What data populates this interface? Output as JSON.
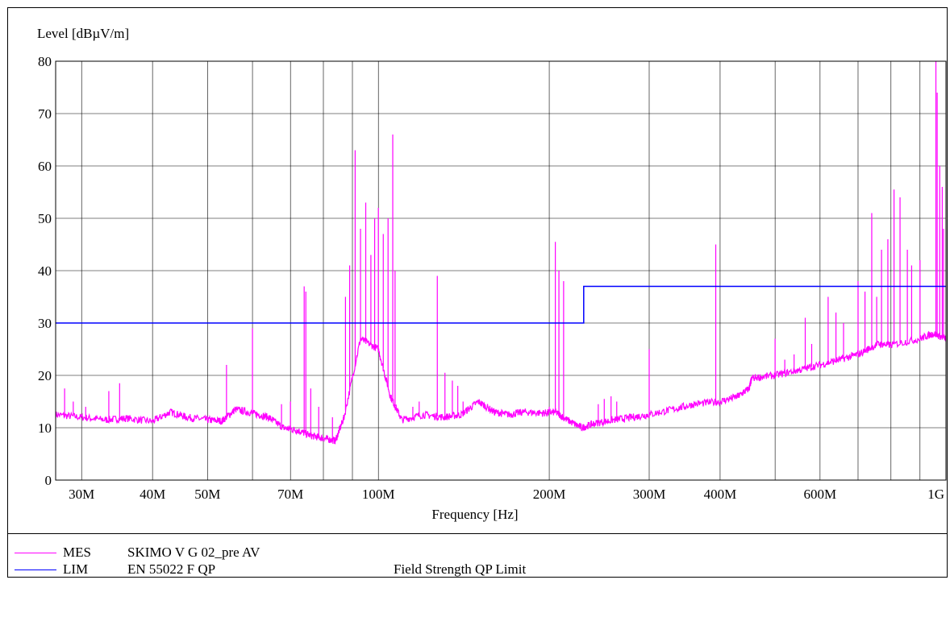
{
  "chart_data": {
    "type": "line",
    "ylabel": "Level [dBµV/m]",
    "xlabel": "Frequency [Hz]",
    "x_scale": "log",
    "xlim": [
      27000000,
      1000000000
    ],
    "ylim": [
      0,
      80
    ],
    "y_ticks": [
      0,
      10,
      20,
      30,
      40,
      50,
      60,
      70,
      80
    ],
    "x_ticks": [
      {
        "value": 30000000,
        "label": "30M"
      },
      {
        "value": 40000000,
        "label": "40M"
      },
      {
        "value": 50000000,
        "label": "50M"
      },
      {
        "value": 70000000,
        "label": "70M"
      },
      {
        "value": 100000000,
        "label": "100M"
      },
      {
        "value": 200000000,
        "label": "200M"
      },
      {
        "value": 300000000,
        "label": "300M"
      },
      {
        "value": 400000000,
        "label": "400M"
      },
      {
        "value": 600000000,
        "label": "600M"
      },
      {
        "value": 1000000000,
        "label": "1G"
      }
    ],
    "grid_x": [
      30000000,
      40000000,
      50000000,
      60000000,
      70000000,
      80000000,
      90000000,
      100000000,
      200000000,
      300000000,
      400000000,
      500000000,
      600000000,
      700000000,
      800000000,
      900000000
    ],
    "grid": true,
    "legend_placement": "bottom",
    "series": [
      {
        "name": "MES",
        "color": "#ff00ff",
        "baseline": [
          [
            27000000,
            12.5
          ],
          [
            30000000,
            12.0
          ],
          [
            33000000,
            11.5
          ],
          [
            36000000,
            11.8
          ],
          [
            40000000,
            11.2
          ],
          [
            43000000,
            13.0
          ],
          [
            46000000,
            12.0
          ],
          [
            50000000,
            11.5
          ],
          [
            53000000,
            11.3
          ],
          [
            56000000,
            13.5
          ],
          [
            60000000,
            12.8
          ],
          [
            64000000,
            12.0
          ],
          [
            68000000,
            10.0
          ],
          [
            72000000,
            9.5
          ],
          [
            76000000,
            8.5
          ],
          [
            80000000,
            8.0
          ],
          [
            84000000,
            7.5
          ],
          [
            87000000,
            12.0
          ],
          [
            93000000,
            27.0
          ],
          [
            100000000,
            25.0
          ],
          [
            105000000,
            16.0
          ],
          [
            110000000,
            11.5
          ],
          [
            120000000,
            12.5
          ],
          [
            130000000,
            12.0
          ],
          [
            140000000,
            12.5
          ],
          [
            150000000,
            15.0
          ],
          [
            160000000,
            13.0
          ],
          [
            170000000,
            12.5
          ],
          [
            180000000,
            13.0
          ],
          [
            195000000,
            12.8
          ],
          [
            205000000,
            13.0
          ],
          [
            215000000,
            11.5
          ],
          [
            228000000,
            10.0
          ],
          [
            240000000,
            10.8
          ],
          [
            260000000,
            11.5
          ],
          [
            280000000,
            12.0
          ],
          [
            300000000,
            12.5
          ],
          [
            330000000,
            13.5
          ],
          [
            360000000,
            14.5
          ],
          [
            400000000,
            15.0
          ],
          [
            430000000,
            16.0
          ],
          [
            450000000,
            17.5
          ],
          [
            455000000,
            19.5
          ],
          [
            500000000,
            20.0
          ],
          [
            550000000,
            21.0
          ],
          [
            600000000,
            22.0
          ],
          [
            650000000,
            23.0
          ],
          [
            700000000,
            24.0
          ],
          [
            760000000,
            26.0
          ],
          [
            800000000,
            25.8
          ],
          [
            900000000,
            27.0
          ],
          [
            950000000,
            28.0
          ],
          [
            1000000000,
            27.0
          ]
        ],
        "spikes": [
          [
            28000000,
            17.5
          ],
          [
            29000000,
            15.0
          ],
          [
            30500000,
            14.0
          ],
          [
            33500000,
            17.0
          ],
          [
            35000000,
            18.5
          ],
          [
            54000000,
            22.0
          ],
          [
            60000000,
            29.0
          ],
          [
            67500000,
            14.5
          ],
          [
            70000000,
            15.0
          ],
          [
            74000000,
            37.0
          ],
          [
            74500000,
            36.0
          ],
          [
            76000000,
            17.5
          ],
          [
            78500000,
            14.0
          ],
          [
            83000000,
            12.0
          ],
          [
            87500000,
            35.0
          ],
          [
            89000000,
            41.0
          ],
          [
            91000000,
            63.0
          ],
          [
            93000000,
            48.0
          ],
          [
            95000000,
            53.0
          ],
          [
            97000000,
            43.0
          ],
          [
            98500000,
            50.0
          ],
          [
            100000000,
            52.0
          ],
          [
            102000000,
            47.0
          ],
          [
            104000000,
            50.0
          ],
          [
            106000000,
            66.0
          ],
          [
            107000000,
            40.0
          ],
          [
            115000000,
            14.0
          ],
          [
            118000000,
            15.0
          ],
          [
            127000000,
            39.0
          ],
          [
            131000000,
            20.5
          ],
          [
            135000000,
            19.0
          ],
          [
            138000000,
            18.0
          ],
          [
            141000000,
            15.0
          ],
          [
            200000000,
            14.0
          ],
          [
            205000000,
            45.5
          ],
          [
            208000000,
            40.0
          ],
          [
            212000000,
            38.0
          ],
          [
            244000000,
            14.5
          ],
          [
            250000000,
            15.5
          ],
          [
            257000000,
            16.0
          ],
          [
            263000000,
            15.0
          ],
          [
            300000000,
            25.0
          ],
          [
            393000000,
            45.0
          ],
          [
            500000000,
            27.0
          ],
          [
            520000000,
            23.0
          ],
          [
            540000000,
            24.0
          ],
          [
            565000000,
            31.0
          ],
          [
            580000000,
            26.0
          ],
          [
            620000000,
            35.0
          ],
          [
            640000000,
            32.0
          ],
          [
            660000000,
            30.0
          ],
          [
            700000000,
            38.0
          ],
          [
            720000000,
            36.0
          ],
          [
            740000000,
            51.0
          ],
          [
            755000000,
            35.0
          ],
          [
            770000000,
            44.0
          ],
          [
            790000000,
            46.0
          ],
          [
            810000000,
            55.5
          ],
          [
            830000000,
            54.0
          ],
          [
            855000000,
            44.0
          ],
          [
            870000000,
            41.0
          ],
          [
            900000000,
            42.0
          ],
          [
            960000000,
            80.0
          ],
          [
            965000000,
            74.0
          ],
          [
            975000000,
            60.0
          ],
          [
            985000000,
            56.0
          ],
          [
            990000000,
            48.0
          ]
        ]
      },
      {
        "name": "LIM",
        "color": "#0000ff",
        "points": [
          [
            27000000,
            30
          ],
          [
            230000000,
            30
          ],
          [
            230000000,
            37
          ],
          [
            1000000000,
            37
          ]
        ]
      }
    ]
  },
  "legend": [
    {
      "code": "MES",
      "name": "SKIMO V G 02_pre AV",
      "desc": "",
      "color": "#ff00ff"
    },
    {
      "code": "LIM",
      "name": "EN 55022 F QP",
      "desc": "Field Strength QP Limit",
      "color": "#0000ff"
    }
  ]
}
